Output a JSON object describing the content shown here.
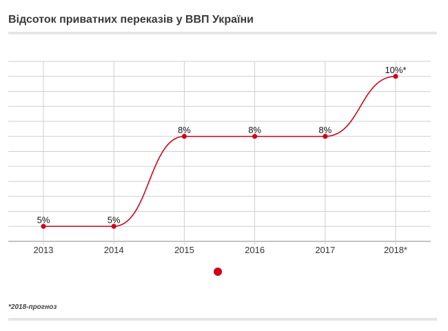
{
  "title": "Відсоток приватних переказів у ВВП України",
  "footnote": "*2018-прогноз",
  "colors": {
    "series": "#d0021b",
    "grid": "#cfcfcf",
    "axis": "#888888"
  },
  "chart_data": {
    "type": "line",
    "title": "Відсоток приватних переказів у ВВП України",
    "categories": [
      "2013",
      "2014",
      "2015",
      "2016",
      "2017",
      "2018*"
    ],
    "series": [
      {
        "values": [
          5,
          5,
          8,
          8,
          8,
          10
        ],
        "labels": [
          "5%",
          "5%",
          "8%",
          "8%",
          "8%",
          "10%*"
        ]
      }
    ],
    "ylim": [
      4.5,
      10.5
    ],
    "grid": true,
    "curve": "smooth",
    "legend": "below-chart"
  }
}
